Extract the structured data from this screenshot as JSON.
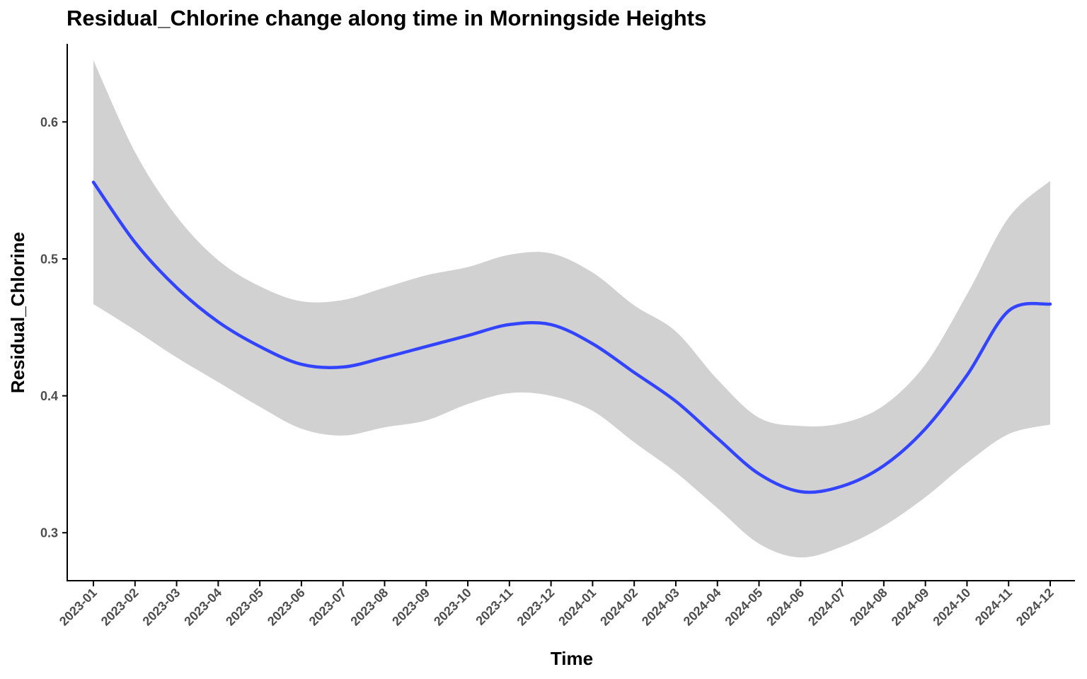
{
  "chart_data": {
    "type": "line",
    "title": "Residual_Chlorine change along time in Morningside Heights",
    "xlabel": "Time",
    "ylabel": "Residual_Chlorine",
    "x_ticks": [
      "2023-01",
      "2023-02",
      "2023-03",
      "2023-04",
      "2023-05",
      "2023-06",
      "2023-07",
      "2023-08",
      "2023-09",
      "2023-10",
      "2023-11",
      "2023-12",
      "2024-01",
      "2024-02",
      "2024-03",
      "2024-04",
      "2024-05",
      "2024-06",
      "2024-07",
      "2024-08",
      "2024-09",
      "2024-10",
      "2024-11",
      "2024-12"
    ],
    "y_ticks": [
      0.3,
      0.4,
      0.5,
      0.6
    ],
    "ylim": [
      0.265,
      0.657
    ],
    "xlim": [
      "2023-01",
      "2024-12"
    ],
    "grid": false,
    "legend": "none",
    "series": [
      {
        "type": "smooth",
        "color": "#3344ff",
        "points": [
          {
            "x": "2023-01",
            "y": 0.556
          },
          {
            "x": "2023-02",
            "y": 0.512
          },
          {
            "x": "2023-03",
            "y": 0.479
          },
          {
            "x": "2023-04",
            "y": 0.454
          },
          {
            "x": "2023-05",
            "y": 0.436
          },
          {
            "x": "2023-06",
            "y": 0.423
          },
          {
            "x": "2023-07",
            "y": 0.421
          },
          {
            "x": "2023-08",
            "y": 0.428
          },
          {
            "x": "2023-09",
            "y": 0.436
          },
          {
            "x": "2023-10",
            "y": 0.444
          },
          {
            "x": "2023-11",
            "y": 0.452
          },
          {
            "x": "2023-12",
            "y": 0.452
          },
          {
            "x": "2024-01",
            "y": 0.438
          },
          {
            "x": "2024-02",
            "y": 0.417
          },
          {
            "x": "2024-03",
            "y": 0.396
          },
          {
            "x": "2024-04",
            "y": 0.369
          },
          {
            "x": "2024-05",
            "y": 0.343
          },
          {
            "x": "2024-06",
            "y": 0.33
          },
          {
            "x": "2024-07",
            "y": 0.334
          },
          {
            "x": "2024-08",
            "y": 0.349
          },
          {
            "x": "2024-09",
            "y": 0.376
          },
          {
            "x": "2024-10",
            "y": 0.415
          },
          {
            "x": "2024-11",
            "y": 0.462
          },
          {
            "x": "2024-12",
            "y": 0.467
          }
        ]
      }
    ],
    "confidence_band": {
      "color": "#d1d1d1",
      "upper": [
        0.645,
        0.578,
        0.531,
        0.499,
        0.48,
        0.469,
        0.47,
        0.479,
        0.488,
        0.494,
        0.503,
        0.504,
        0.49,
        0.466,
        0.447,
        0.412,
        0.384,
        0.378,
        0.38,
        0.393,
        0.423,
        0.474,
        0.53,
        0.557
      ],
      "lower": [
        0.467,
        0.448,
        0.428,
        0.41,
        0.392,
        0.376,
        0.371,
        0.377,
        0.382,
        0.394,
        0.402,
        0.4,
        0.389,
        0.366,
        0.344,
        0.318,
        0.292,
        0.282,
        0.29,
        0.305,
        0.326,
        0.351,
        0.372,
        0.379
      ]
    }
  }
}
